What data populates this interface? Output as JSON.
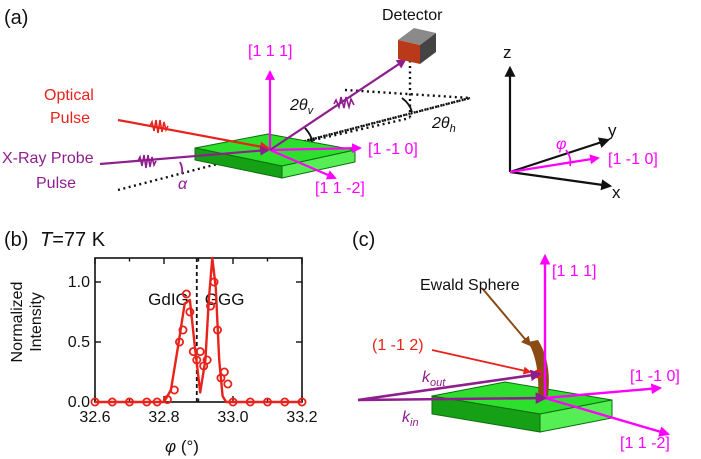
{
  "panel_a": {
    "label": "(a)",
    "detector_label": "Detector",
    "optical_pulse_line1": "Optical",
    "optical_pulse_line2": "Pulse",
    "xray_line1": "X-Ray Probe",
    "xray_line2": "Pulse",
    "axis_111": "[1 1 1]",
    "axis_1m10": "[1 -1 0]",
    "axis_11m2": "[1 1 -2]",
    "theta_v": "2θ",
    "theta_v_sub": "v",
    "theta_h": "2θ",
    "theta_h_sub": "h",
    "alpha": "α"
  },
  "coord_frame": {
    "z": "z",
    "y": "y",
    "x": "x",
    "phi": "φ",
    "axis_1m10": "[1 -1 0]"
  },
  "panel_b": {
    "label": "(b)",
    "temp_label": "T",
    "temp_value": "=77 K",
    "ylabel_line1": "Normalized",
    "ylabel_line2": "Intensity",
    "xlabel": "φ (°)",
    "region_left": "GdIG",
    "region_right": "GGG"
  },
  "chart_data": {
    "type": "scatter",
    "xlim": [
      32.6,
      33.2
    ],
    "ylim": [
      0,
      1.2
    ],
    "xticks": [
      32.6,
      32.7,
      32.8,
      32.9,
      33.0,
      33.1,
      33.2
    ],
    "yticks": [
      0.0,
      0.5,
      1.0
    ],
    "xtick_labels": [
      "32.6",
      "",
      "32.8",
      "",
      "33.0",
      "",
      "33.2"
    ],
    "ytick_labels": [
      "0.0",
      "0.5",
      "1.0"
    ],
    "divider_x": 32.895,
    "series": [
      {
        "name": "data",
        "style": "open-circles",
        "color": "#e8231b",
        "x": [
          32.6,
          32.65,
          32.7,
          32.75,
          32.78,
          32.81,
          32.83,
          32.845,
          32.855,
          32.865,
          32.875,
          32.885,
          32.895,
          32.905,
          32.915,
          32.925,
          32.935,
          32.945,
          32.955,
          32.965,
          32.975,
          32.985,
          33.0,
          33.05,
          33.1,
          33.15,
          33.2
        ],
        "y": [
          0.0,
          0.0,
          0.0,
          0.0,
          0.0,
          0.02,
          0.1,
          0.5,
          0.6,
          0.9,
          0.75,
          0.42,
          0.35,
          0.42,
          0.3,
          0.35,
          0.8,
          1.0,
          0.6,
          0.2,
          0.25,
          0.15,
          0.0,
          0.0,
          0.0,
          0.0,
          0.0
        ]
      },
      {
        "name": "fit",
        "style": "line",
        "color": "#e8231b",
        "x": [
          32.6,
          32.8,
          32.82,
          32.84,
          32.86,
          32.875,
          32.89,
          32.905,
          32.92,
          32.93,
          32.94,
          32.95,
          32.96,
          32.97,
          32.98,
          33.0,
          33.2
        ],
        "y": [
          0.0,
          0.0,
          0.1,
          0.45,
          0.82,
          0.85,
          0.45,
          0.08,
          0.35,
          0.85,
          1.2,
          0.95,
          0.35,
          0.05,
          0.0,
          0.0,
          0.0
        ]
      }
    ]
  },
  "panel_c": {
    "label": "(c)",
    "ewald": "Ewald Sphere",
    "reflection": "(1 -1 2)",
    "k_out": "k",
    "k_out_sub": "out",
    "k_in": "k",
    "k_in_sub": "in",
    "axis_111": "[1 1 1]",
    "axis_1m10": "[1 -1 0]",
    "axis_11m2": "[1 1 -2]"
  },
  "colors": {
    "magenta": "#ff00ff",
    "purple": "#8e1e8e",
    "red": "#e8231b",
    "green": "#22c022",
    "brown": "#8b4a14"
  }
}
